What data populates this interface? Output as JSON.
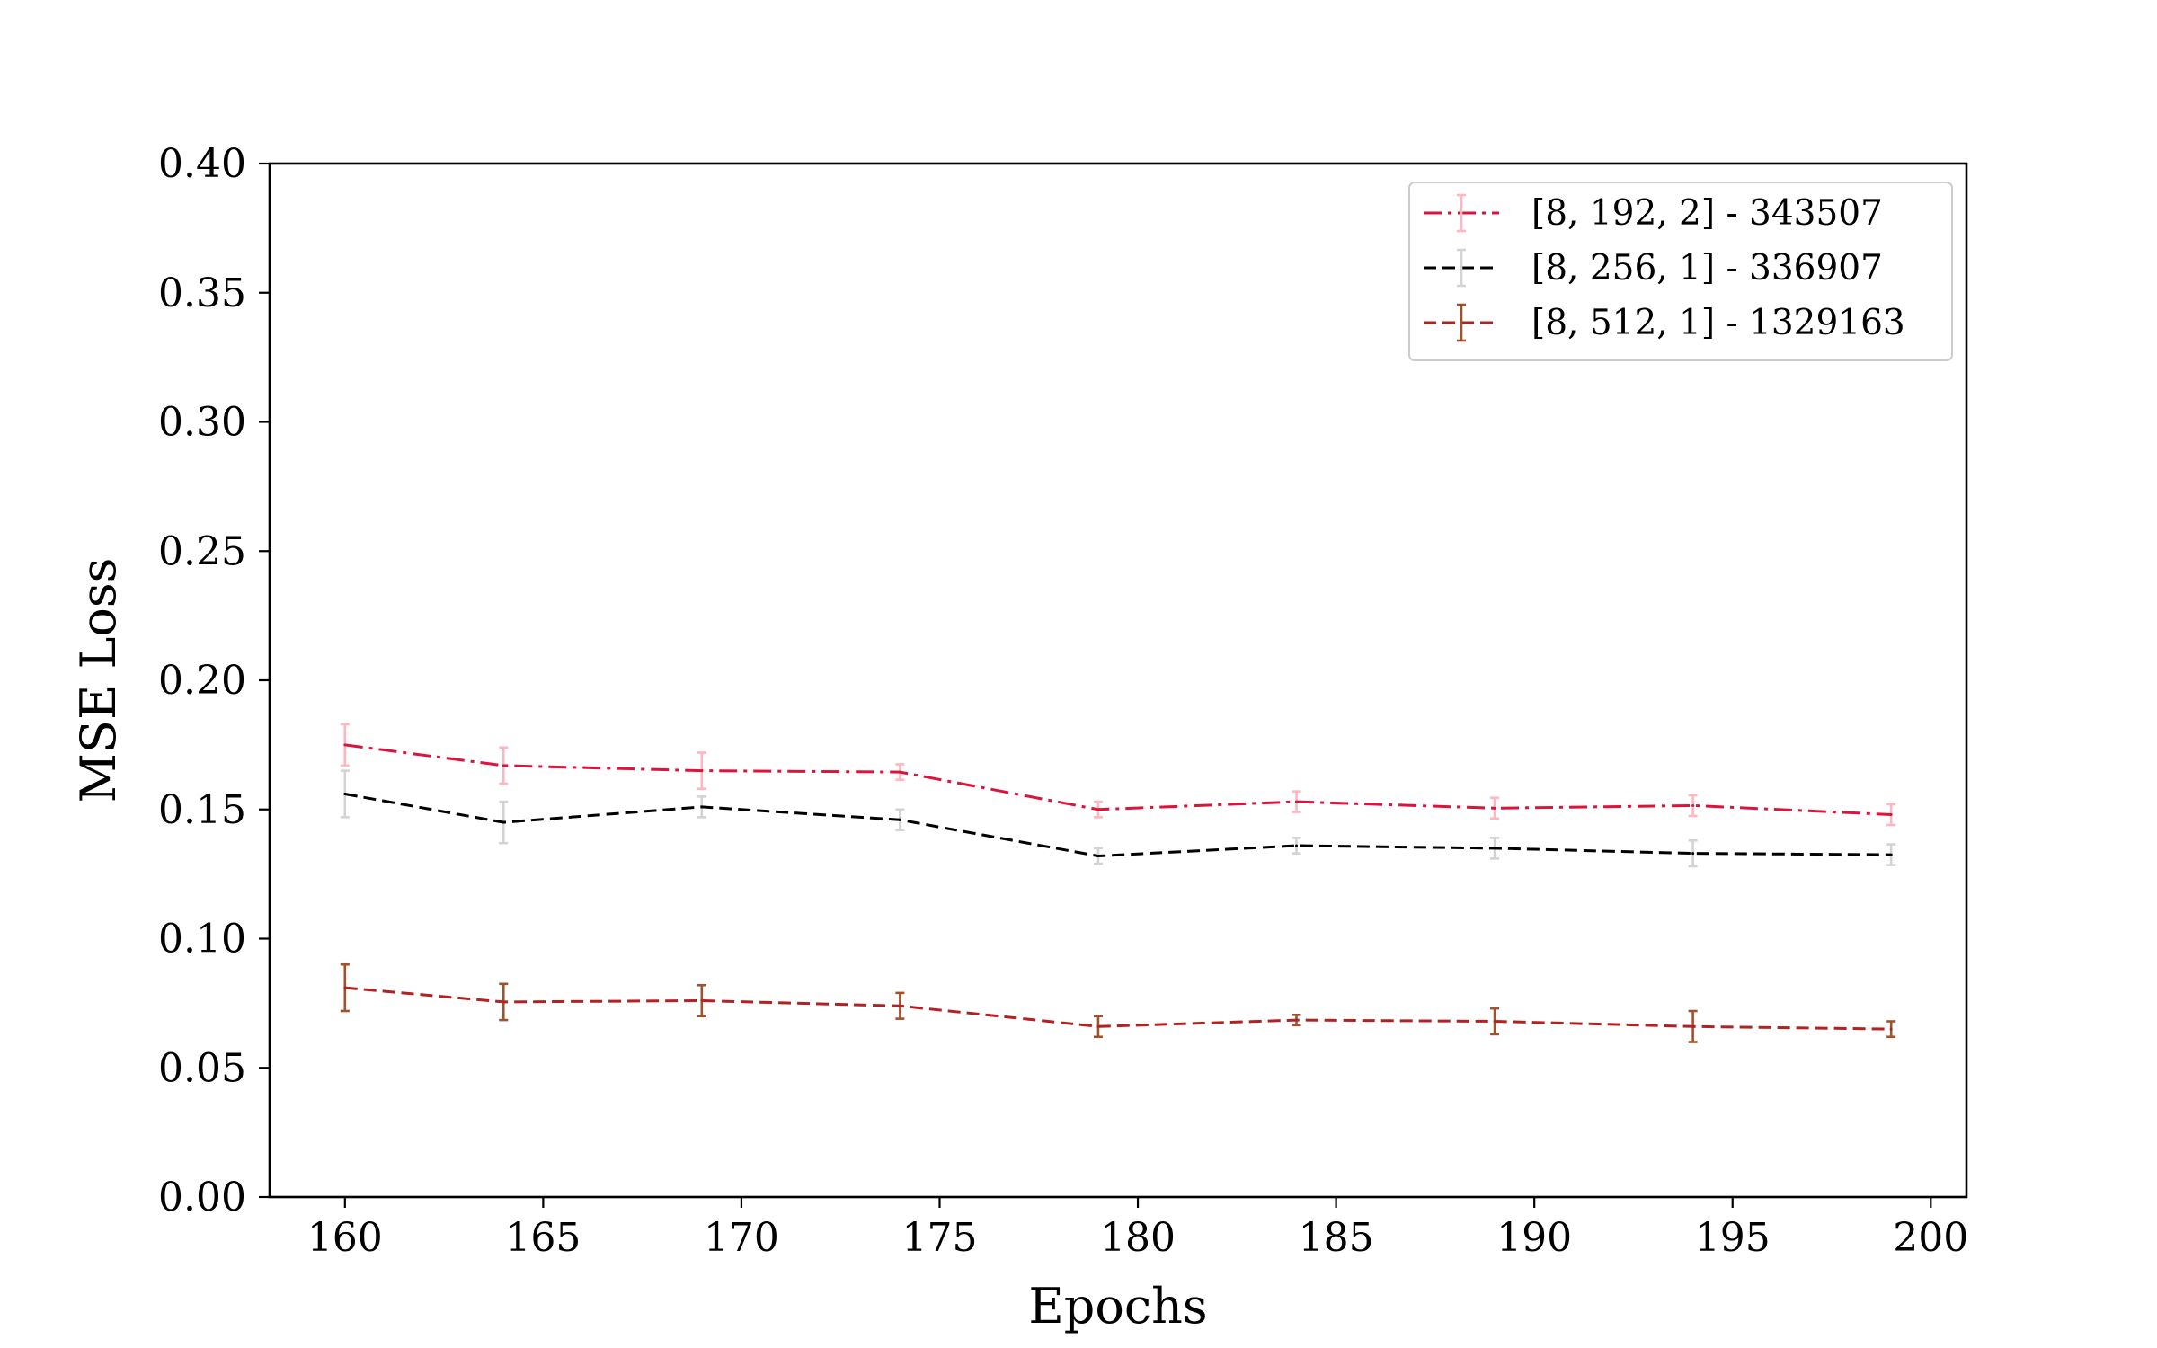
{
  "chart_data": {
    "type": "line",
    "title": "",
    "xlabel": "Epochs",
    "ylabel": "MSE Loss",
    "xlim": [
      158.1,
      200.9
    ],
    "ylim": [
      0.0,
      0.4
    ],
    "xticks": [
      "160",
      "165",
      "170",
      "175",
      "180",
      "185",
      "190",
      "195",
      "200"
    ],
    "yticks": [
      "0.00",
      "0.05",
      "0.10",
      "0.15",
      "0.20",
      "0.25",
      "0.30",
      "0.35",
      "0.40"
    ],
    "grid": false,
    "legend_position": "top-right",
    "x": [
      160,
      164,
      169,
      174,
      179,
      184,
      189,
      194,
      199
    ],
    "series": [
      {
        "name": "[8, 192, 2] - 343507",
        "color": "#dc143c",
        "errorbar_color": "#ffb6c1",
        "linestyle": "dashdot",
        "values": [
          0.175,
          0.167,
          0.165,
          0.1645,
          0.15,
          0.153,
          0.1505,
          0.1515,
          0.148
        ],
        "errors": [
          0.008,
          0.007,
          0.007,
          0.003,
          0.003,
          0.004,
          0.004,
          0.004,
          0.004
        ]
      },
      {
        "name": "[8, 256, 1] - 336907",
        "color": "#000000",
        "errorbar_color": "#d3d3d3",
        "linestyle": "dashed",
        "values": [
          0.156,
          0.145,
          0.151,
          0.146,
          0.132,
          0.136,
          0.135,
          0.133,
          0.1325
        ],
        "errors": [
          0.009,
          0.008,
          0.004,
          0.004,
          0.003,
          0.003,
          0.004,
          0.005,
          0.004
        ]
      },
      {
        "name": "[8, 512, 1] - 1329163",
        "color": "#b22222",
        "errorbar_color": "#a0522d",
        "linestyle": "dashed",
        "values": [
          0.081,
          0.0755,
          0.076,
          0.074,
          0.066,
          0.0685,
          0.068,
          0.066,
          0.065
        ],
        "errors": [
          0.009,
          0.007,
          0.006,
          0.005,
          0.004,
          0.002,
          0.005,
          0.006,
          0.003
        ]
      }
    ]
  }
}
